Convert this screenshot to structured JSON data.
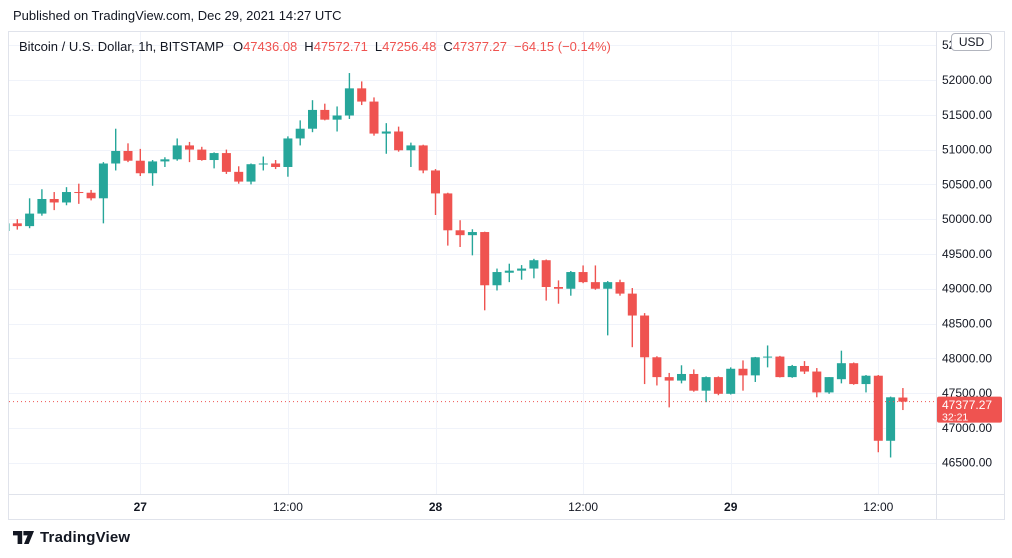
{
  "published_line": "Published on TradingView.com, Dec 29, 2021 14:27 UTC",
  "legend": {
    "symbol_title": "Bitcoin / U.S. Dollar, 1h, BITSTAMP",
    "o_label": "O",
    "o_value": "47436.08",
    "h_label": "H",
    "h_value": "47572.71",
    "l_label": "L",
    "l_value": "47256.48",
    "c_label": "C",
    "c_value": "47377.27",
    "change": "−64.15 (−0.14%)"
  },
  "price_axis": {
    "currency_badge": "USD",
    "last_price_label": "47377.27",
    "countdown": "32:21"
  },
  "footer": {
    "logo_text": "TradingView"
  },
  "colors": {
    "up": "#26A69A",
    "down": "#EF5350",
    "grid": "#F0F3FA",
    "border": "#E0E3EB",
    "text": "#131722",
    "accent_red": "#EF5350",
    "badge_text": "#FFFFFF"
  },
  "chart_data": {
    "type": "candlestick",
    "title": "Bitcoin / U.S. Dollar, 1h, BITSTAMP",
    "interval": "1h",
    "exchange": "BITSTAMP",
    "ohlc_readout": {
      "open": 47436.08,
      "high": 47572.71,
      "low": 47256.48,
      "close": 47377.27,
      "change": "-64.15 (-0.14%)"
    },
    "last_price": 47377.27,
    "countdown": "32:21",
    "y_axis": {
      "min": 46050,
      "max": 52690,
      "tick_step": 500
    },
    "y_ticks": [
      52500,
      52000,
      51500,
      51000,
      50500,
      50000,
      49500,
      49000,
      48500,
      48000,
      47500,
      47000,
      46500
    ],
    "x_ticks": [
      {
        "index": 11,
        "label": "27",
        "bold": true
      },
      {
        "index": 23,
        "label": "12:00",
        "bold": false
      },
      {
        "index": 35,
        "label": "28",
        "bold": true
      },
      {
        "index": 47,
        "label": "12:00",
        "bold": false
      },
      {
        "index": 59,
        "label": "29",
        "bold": true
      },
      {
        "index": 71,
        "label": "12:00",
        "bold": false
      }
    ],
    "candles": [
      [
        49830,
        49960,
        49760,
        49940
      ],
      [
        49940,
        50000,
        49850,
        49900
      ],
      [
        49900,
        50300,
        49870,
        50080
      ],
      [
        50080,
        50430,
        50050,
        50290
      ],
      [
        50290,
        50390,
        50130,
        50240
      ],
      [
        50240,
        50460,
        50200,
        50390
      ],
      [
        50390,
        50510,
        50220,
        50380
      ],
      [
        50380,
        50420,
        50270,
        50300
      ],
      [
        50300,
        50820,
        49940,
        50800
      ],
      [
        50800,
        51300,
        50700,
        50980
      ],
      [
        50980,
        51090,
        50820,
        50840
      ],
      [
        50840,
        51010,
        50620,
        50660
      ],
      [
        50660,
        50850,
        50480,
        50830
      ],
      [
        50830,
        50890,
        50750,
        50860
      ],
      [
        50860,
        51160,
        50840,
        51060
      ],
      [
        51060,
        51110,
        50820,
        51000
      ],
      [
        51000,
        51040,
        50840,
        50850
      ],
      [
        50850,
        50960,
        50730,
        50950
      ],
      [
        50950,
        51000,
        50650,
        50680
      ],
      [
        50680,
        50760,
        50510,
        50540
      ],
      [
        50540,
        50800,
        50500,
        50790
      ],
      [
        50790,
        50900,
        50700,
        50800
      ],
      [
        50800,
        50850,
        50720,
        50750
      ],
      [
        50750,
        51190,
        50610,
        51160
      ],
      [
        51160,
        51420,
        51060,
        51300
      ],
      [
        51300,
        51710,
        51250,
        51570
      ],
      [
        51570,
        51660,
        51420,
        51430
      ],
      [
        51430,
        51620,
        51260,
        51490
      ],
      [
        51490,
        52100,
        51440,
        51880
      ],
      [
        51880,
        51980,
        51640,
        51690
      ],
      [
        51690,
        51750,
        51200,
        51230
      ],
      [
        51230,
        51380,
        50940,
        51260
      ],
      [
        51260,
        51330,
        50970,
        50990
      ],
      [
        50990,
        51100,
        50750,
        51060
      ],
      [
        51060,
        51070,
        50660,
        50700
      ],
      [
        50700,
        50720,
        50060,
        50370
      ],
      [
        50370,
        50380,
        49620,
        49840
      ],
      [
        49840,
        49985,
        49600,
        49770
      ],
      [
        49770,
        49855,
        49480,
        49815
      ],
      [
        49815,
        49820,
        48690,
        49050
      ],
      [
        49050,
        49290,
        48975,
        49240
      ],
      [
        49230,
        49360,
        49095,
        49260
      ],
      [
        49260,
        49340,
        49130,
        49290
      ],
      [
        49290,
        49430,
        49150,
        49410
      ],
      [
        49410,
        49420,
        48830,
        49025
      ],
      [
        49025,
        49120,
        48785,
        49000
      ],
      [
        49000,
        49255,
        48900,
        49240
      ],
      [
        49240,
        49335,
        49080,
        49095
      ],
      [
        49095,
        49335,
        48985,
        49000
      ],
      [
        49000,
        49110,
        48330,
        49095
      ],
      [
        49095,
        49130,
        48900,
        48930
      ],
      [
        48930,
        49010,
        48160,
        48615
      ],
      [
        48615,
        48650,
        47630,
        48015
      ],
      [
        48015,
        48030,
        47610,
        47730
      ],
      [
        47730,
        47790,
        47295,
        47680
      ],
      [
        47680,
        47900,
        47640,
        47775
      ],
      [
        47775,
        47840,
        47520,
        47535
      ],
      [
        47535,
        47740,
        47370,
        47730
      ],
      [
        47730,
        47740,
        47470,
        47490
      ],
      [
        47490,
        47870,
        47480,
        47850
      ],
      [
        47850,
        47970,
        47535,
        47755
      ],
      [
        47755,
        48020,
        47660,
        48015
      ],
      [
        48015,
        48185,
        47870,
        48025
      ],
      [
        48025,
        48035,
        47725,
        47730
      ],
      [
        47730,
        47905,
        47720,
        47890
      ],
      [
        47890,
        47960,
        47775,
        47810
      ],
      [
        47810,
        47860,
        47440,
        47510
      ],
      [
        47510,
        47730,
        47490,
        47730
      ],
      [
        47700,
        48110,
        47640,
        47930
      ],
      [
        47930,
        47940,
        47620,
        47630
      ],
      [
        47630,
        47760,
        47510,
        47750
      ],
      [
        47750,
        47760,
        46650,
        46815
      ],
      [
        46815,
        47450,
        46575,
        47440
      ],
      [
        47436.08,
        47572.71,
        47256.48,
        47377.27
      ]
    ]
  }
}
